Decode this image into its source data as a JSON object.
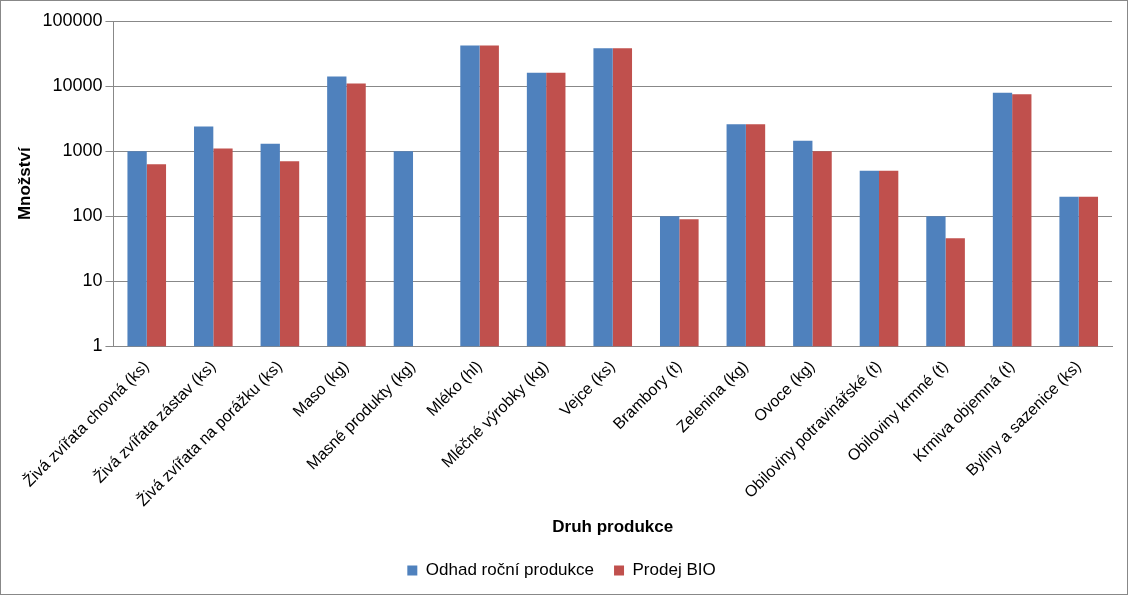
{
  "chart_data": {
    "type": "bar",
    "xlabel": "Druh produkce",
    "ylabel": "Množství",
    "categories": [
      "Živá zvířata chovná (ks)",
      "Živá zvířata zástav (ks)",
      "Živá zvířata na porážku (ks)",
      "Maso (kg)",
      "Masné produkty (kg)",
      "Mléko (hl)",
      "Mléčné výrobky (kg)",
      "Vejce (ks)",
      "Brambory (t)",
      "Zelenina (kg)",
      "Ovoce (kg)",
      "Obiloviny potravinářské (t)",
      "Obiloviny krmné (t)",
      "Krmiva objemná (t)",
      "Byliny a sazenice (ks)"
    ],
    "series": [
      {
        "name": "Odhad roční produkce",
        "color": "#4f81bd",
        "values": [
          1000,
          2400,
          1300,
          14000,
          1000,
          42000,
          16000,
          38000,
          100,
          2600,
          1450,
          500,
          100,
          7900,
          200
        ]
      },
      {
        "name": "Prodej BIO",
        "color": "#c0504d",
        "values": [
          630,
          1100,
          700,
          11000,
          null,
          42000,
          16000,
          38000,
          90,
          2600,
          1000,
          500,
          46,
          7500,
          200
        ]
      }
    ],
    "log": true,
    "ylim": [
      1,
      100000
    ],
    "yticks": [
      1,
      10,
      100,
      1000,
      10000,
      100000
    ],
    "grid": "y",
    "legend": "bottom"
  }
}
